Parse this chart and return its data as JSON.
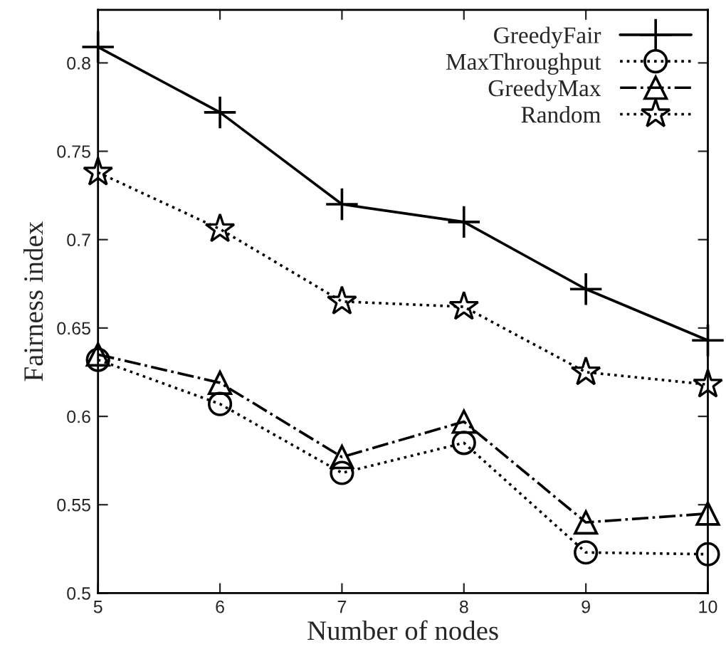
{
  "chart_data": {
    "type": "line",
    "xlabel": "Number of nodes",
    "ylabel": "Fairness index",
    "x": [
      5,
      6,
      7,
      8,
      9,
      10
    ],
    "series": [
      {
        "name": "GreedyFair",
        "color": "#000000",
        "marker": "cross",
        "line_style": "solid",
        "values": [
          0.809,
          0.772,
          0.72,
          0.71,
          0.672,
          0.643
        ]
      },
      {
        "name": "MaxThroughput",
        "color": "#000000",
        "marker": "circle",
        "line_style": "dotted",
        "values": [
          0.632,
          0.607,
          0.568,
          0.585,
          0.523,
          0.522
        ]
      },
      {
        "name": "GreedyMax",
        "color": "#000000",
        "marker": "triangle",
        "line_style": "dashed",
        "values": [
          0.635,
          0.619,
          0.577,
          0.597,
          0.54,
          0.545
        ]
      },
      {
        "name": "Random",
        "color": "#000000",
        "marker": "star",
        "line_style": "dotted",
        "values": [
          0.738,
          0.706,
          0.665,
          0.662,
          0.625,
          0.618
        ]
      }
    ],
    "xlim": [
      5,
      10
    ],
    "xticks": [
      5,
      6,
      7,
      8,
      9,
      10
    ],
    "ylim": [
      0.5,
      0.83
    ],
    "yticks": [
      0.5,
      0.55,
      0.6,
      0.65,
      0.7,
      0.75,
      0.8
    ],
    "legend": "top right",
    "grid": false
  }
}
